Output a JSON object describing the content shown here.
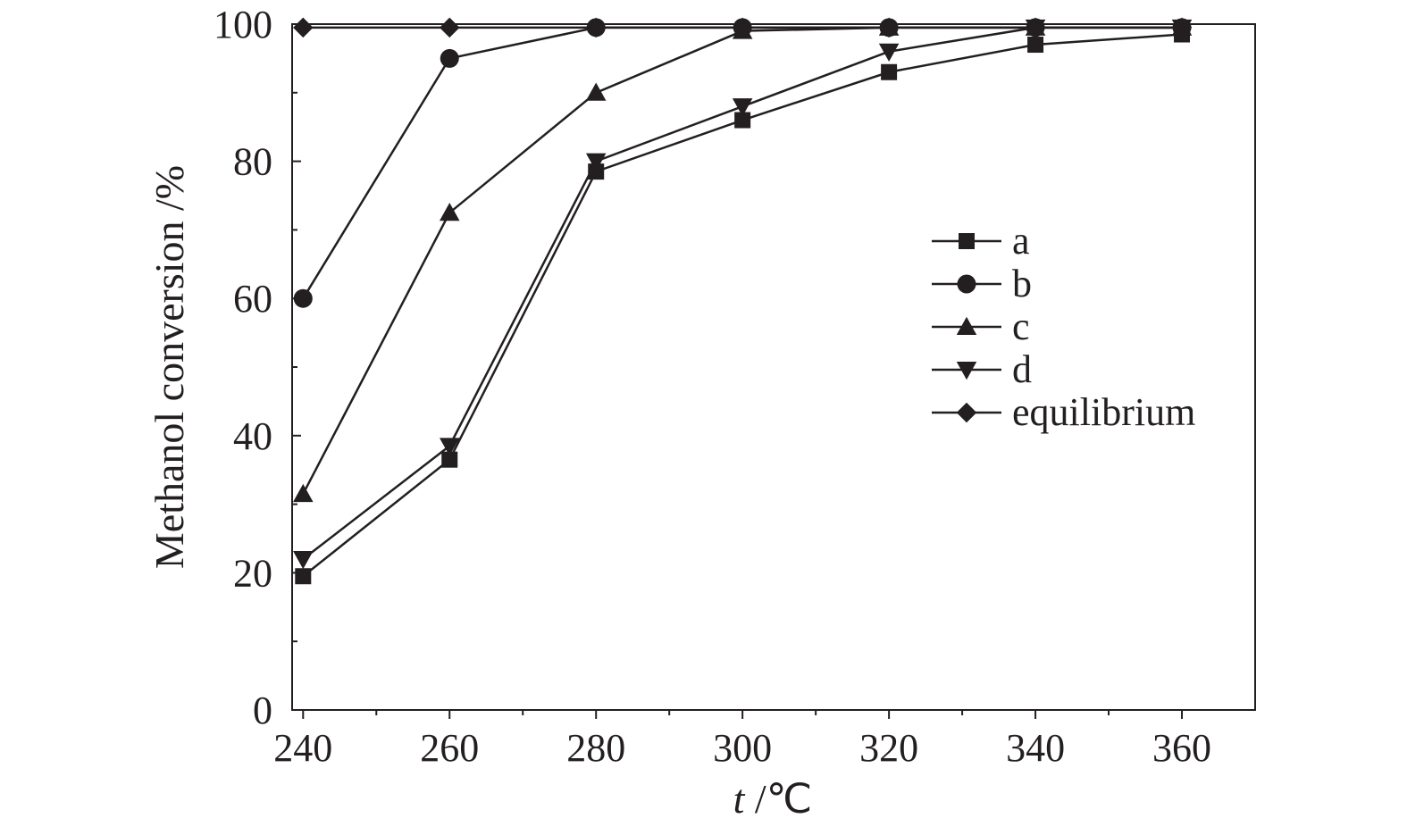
{
  "chart_data": {
    "type": "line",
    "xlabel_italic": "t",
    "xlabel_unit": " /℃",
    "ylabel": "Methanol conversion /%",
    "xlim": [
      238.5,
      370
    ],
    "ylim": [
      0,
      100
    ],
    "x": [
      240,
      260,
      280,
      300,
      320,
      340,
      360
    ],
    "x_tick_labels": [
      "240",
      "260",
      "280",
      "300",
      "320",
      "340",
      "360"
    ],
    "y_tick_labels": [
      "0",
      "20",
      "40",
      "60",
      "80",
      "100"
    ],
    "y_ticks": [
      0,
      20,
      40,
      60,
      80,
      100
    ],
    "x_minor_ticks": [
      250,
      270,
      290,
      310,
      330,
      350
    ],
    "y_minor_ticks": [
      10,
      30,
      50,
      70,
      90
    ],
    "grid": false,
    "legend_position": "right",
    "series": [
      {
        "name": "a",
        "marker": "square",
        "values": [
          19.5,
          36.5,
          78.5,
          86,
          93,
          97,
          98.5
        ]
      },
      {
        "name": "b",
        "marker": "circle",
        "values": [
          60,
          95,
          99.5,
          99.5,
          99.5,
          99.5,
          99.5
        ]
      },
      {
        "name": "c",
        "marker": "triangle-up",
        "values": [
          31.5,
          72.5,
          90,
          99,
          99.5,
          99.5,
          99.5
        ]
      },
      {
        "name": "d",
        "marker": "triangle-down",
        "values": [
          22,
          38.5,
          80,
          88,
          96,
          99.5,
          99.5
        ]
      },
      {
        "name": "equilibrium",
        "marker": "diamond",
        "values": [
          99.5,
          99.5,
          99.5,
          99.5,
          99.5,
          99.5,
          99.5
        ]
      }
    ],
    "colors": {
      "line": "#231f20",
      "background": "#ffffff"
    }
  }
}
